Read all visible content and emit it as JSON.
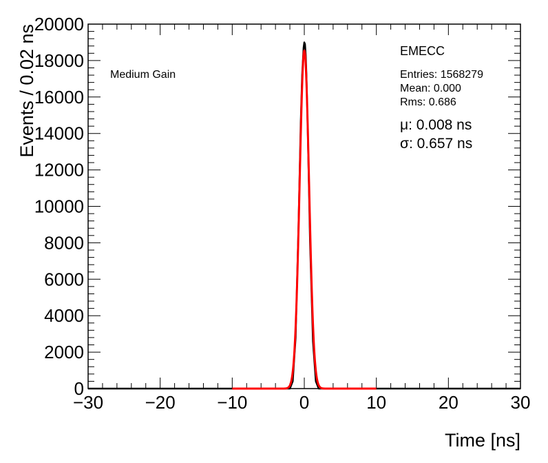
{
  "chart_data": {
    "type": "line",
    "xlabel": "Time [ns]",
    "ylabel": "Events / 0.02 ns",
    "xlim": [
      -30,
      30
    ],
    "ylim": [
      0,
      20000
    ],
    "xticks": [
      -30,
      -20,
      -10,
      0,
      10,
      20,
      30
    ],
    "yticks": [
      0,
      2000,
      4000,
      6000,
      8000,
      10000,
      12000,
      14000,
      16000,
      18000,
      20000
    ],
    "xtick_labels": [
      "−30",
      "−20",
      "−10",
      "0",
      "10",
      "20",
      "30"
    ],
    "ytick_labels": [
      "0",
      "2000",
      "4000",
      "6000",
      "8000",
      "10000",
      "12000",
      "14000",
      "16000",
      "18000",
      "20000"
    ],
    "series": [
      {
        "kind": "histogram",
        "color": "#000000",
        "x": [
          -2.0,
          -1.6,
          -1.2,
          -0.8,
          -0.5,
          -0.3,
          -0.1,
          0.0,
          0.1,
          0.2,
          0.3,
          0.5,
          0.8,
          1.2,
          1.6,
          2.0
        ],
        "y": [
          0,
          400,
          2800,
          9000,
          14500,
          17200,
          18700,
          19000,
          18900,
          18300,
          17200,
          13800,
          8000,
          2600,
          400,
          0
        ]
      },
      {
        "kind": "fit",
        "color": "#ff0000",
        "function": "gaussian",
        "mu": 0.008,
        "sigma": 0.657,
        "amplitude": 18550,
        "x_range": [
          -10,
          10
        ]
      }
    ],
    "annotations": {
      "gain": "Medium Gain",
      "region": "EMECC",
      "entries": "Entries: 1568279",
      "mean": "Mean: 0.000",
      "rms": "Rms: 0.686",
      "mu": "μ: 0.008 ns",
      "sigma": "σ: 0.657 ns"
    },
    "grid": false,
    "legend": "none"
  }
}
